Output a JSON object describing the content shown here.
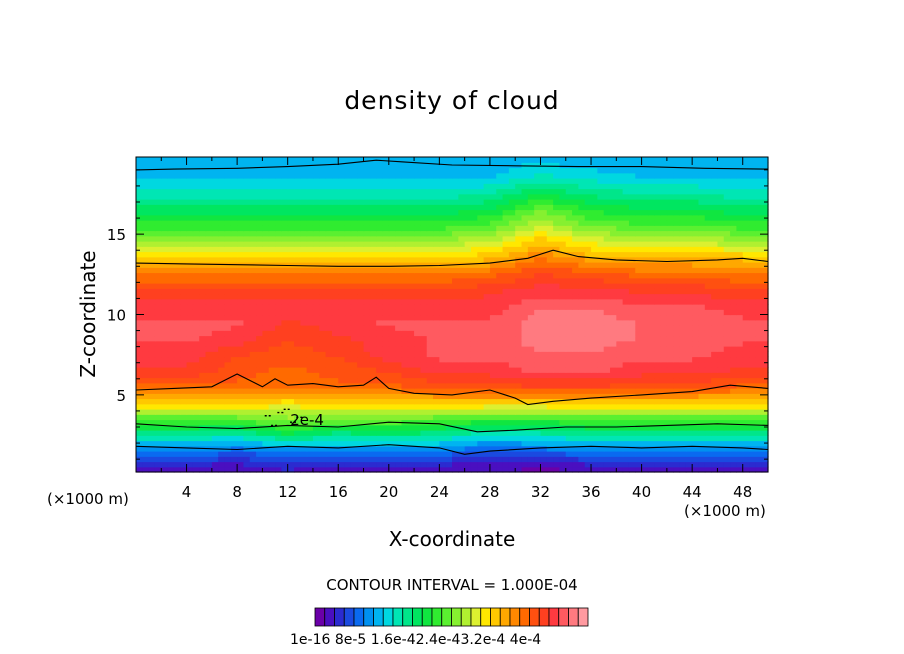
{
  "chart_data": {
    "type": "heatmap",
    "title": "density of cloud",
    "xlabel": "X-coordinate",
    "ylabel": "Z-coordinate",
    "x_unit": "(×1000 m)",
    "xlim": [
      0,
      50
    ],
    "ylim": [
      0.2,
      19.8
    ],
    "x_ticks": [
      4,
      8,
      12,
      16,
      20,
      24,
      28,
      32,
      36,
      40,
      44,
      48
    ],
    "y_ticks": [
      5,
      10,
      15
    ],
    "contour_interval_text": "CONTOUR INTERVAL = 1.000E-04",
    "contour_label": "2e-4",
    "colorbar_labels": "1e-16 8e-5 1.6e-42.4e-43.2e-4 4e-4",
    "colorbar_colors": [
      "#6a00a8",
      "#4a0fc0",
      "#2b2bd0",
      "#1a4ae0",
      "#0a6af0",
      "#0090f0",
      "#00b4f0",
      "#00d8e0",
      "#00e6b4",
      "#00e68a",
      "#00e660",
      "#10e640",
      "#30ec30",
      "#5af030",
      "#86f030",
      "#b0f030",
      "#dcf030",
      "#ffe800",
      "#ffc800",
      "#ffa800",
      "#ff8800",
      "#ff6a00",
      "#ff5010",
      "#ff4020",
      "#ff3a40",
      "#ff5a60",
      "#ff7a80",
      "#ff9aa0"
    ],
    "contour_lines": [
      {
        "level": "upper",
        "points": [
          [
            0,
            19.0
          ],
          [
            3,
            19.05
          ],
          [
            8,
            19.1
          ],
          [
            12,
            19.2
          ],
          [
            16,
            19.35
          ],
          [
            19,
            19.6
          ],
          [
            21,
            19.5
          ],
          [
            25,
            19.3
          ],
          [
            30,
            19.25
          ],
          [
            35,
            19.2
          ],
          [
            40,
            19.2
          ],
          [
            45,
            19.1
          ],
          [
            50,
            19.05
          ]
        ]
      },
      {
        "level": "mid-upper",
        "points": [
          [
            0,
            13.2
          ],
          [
            4,
            13.15
          ],
          [
            8,
            13.1
          ],
          [
            12,
            13.05
          ],
          [
            16,
            13.0
          ],
          [
            20,
            13.0
          ],
          [
            24,
            13.05
          ],
          [
            28,
            13.2
          ],
          [
            31,
            13.5
          ],
          [
            33,
            14.0
          ],
          [
            35,
            13.6
          ],
          [
            38,
            13.4
          ],
          [
            42,
            13.3
          ],
          [
            46,
            13.4
          ],
          [
            48,
            13.5
          ],
          [
            50,
            13.3
          ]
        ]
      },
      {
        "level": "mid-lower",
        "points": [
          [
            0,
            5.3
          ],
          [
            3,
            5.4
          ],
          [
            6,
            5.5
          ],
          [
            8,
            6.3
          ],
          [
            9,
            5.9
          ],
          [
            10,
            5.5
          ],
          [
            11,
            6.0
          ],
          [
            12,
            5.6
          ],
          [
            14,
            5.7
          ],
          [
            16,
            5.5
          ],
          [
            18,
            5.6
          ],
          [
            19,
            6.1
          ],
          [
            20,
            5.4
          ],
          [
            22,
            5.1
          ],
          [
            25,
            5.0
          ],
          [
            28,
            5.3
          ],
          [
            30,
            4.8
          ],
          [
            31,
            4.4
          ],
          [
            33,
            4.6
          ],
          [
            36,
            4.8
          ],
          [
            40,
            5.0
          ],
          [
            44,
            5.2
          ],
          [
            47,
            5.6
          ],
          [
            50,
            5.4
          ]
        ]
      },
      {
        "level": "low",
        "points": [
          [
            0,
            3.2
          ],
          [
            4,
            3.0
          ],
          [
            8,
            2.9
          ],
          [
            12,
            3.1
          ],
          [
            16,
            3.0
          ],
          [
            20,
            3.3
          ],
          [
            24,
            3.2
          ],
          [
            27,
            2.7
          ],
          [
            30,
            2.8
          ],
          [
            34,
            3.0
          ],
          [
            38,
            3.0
          ],
          [
            42,
            3.1
          ],
          [
            46,
            3.2
          ],
          [
            50,
            3.1
          ]
        ]
      },
      {
        "level": "lowest",
        "points": [
          [
            0,
            1.8
          ],
          [
            4,
            1.7
          ],
          [
            8,
            1.6
          ],
          [
            12,
            1.8
          ],
          [
            16,
            1.7
          ],
          [
            20,
            1.9
          ],
          [
            24,
            1.7
          ],
          [
            26,
            1.3
          ],
          [
            28,
            1.5
          ],
          [
            32,
            1.7
          ],
          [
            36,
            1.8
          ],
          [
            40,
            1.7
          ],
          [
            44,
            1.8
          ],
          [
            48,
            1.7
          ],
          [
            50,
            1.6
          ]
        ]
      }
    ],
    "field": {
      "x": [
        0,
        4,
        8,
        12,
        16,
        20,
        24,
        28,
        32,
        36,
        40,
        44,
        48,
        50
      ],
      "z": [
        0.5,
        1.5,
        2.5,
        3.5,
        4.5,
        5.5,
        6.5,
        7.5,
        8.5,
        9.5,
        10.5,
        11.5,
        12.5,
        13.5,
        14.5,
        15.5,
        16.5,
        17.5,
        18.5,
        19.5
      ],
      "values_x1e-4": [
        [
          0.2,
          0.2,
          0.2,
          0.3,
          0.2,
          0.2,
          0.2,
          0.2,
          0.1,
          0.2,
          0.2,
          0.2,
          0.2,
          0.2
        ],
        [
          0.7,
          0.7,
          0.6,
          0.7,
          0.7,
          0.7,
          0.7,
          0.5,
          0.6,
          0.7,
          0.7,
          0.7,
          0.7,
          0.7
        ],
        [
          1.3,
          1.3,
          1.2,
          1.5,
          1.3,
          1.4,
          1.3,
          1.1,
          1.2,
          1.3,
          1.3,
          1.3,
          1.3,
          1.3
        ],
        [
          1.9,
          1.9,
          1.9,
          2.1,
          2.0,
          2.0,
          1.9,
          1.8,
          1.8,
          1.9,
          1.9,
          1.9,
          1.9,
          1.9
        ],
        [
          2.6,
          2.6,
          2.6,
          2.5,
          2.6,
          2.6,
          2.6,
          2.6,
          2.6,
          2.6,
          2.6,
          2.6,
          2.6,
          2.6
        ],
        [
          3.1,
          3.1,
          3.1,
          3.0,
          3.1,
          3.1,
          3.2,
          3.2,
          3.3,
          3.3,
          3.2,
          3.2,
          3.1,
          3.1
        ],
        [
          3.4,
          3.4,
          3.2,
          3.1,
          3.2,
          3.3,
          3.5,
          3.5,
          3.6,
          3.6,
          3.5,
          3.5,
          3.4,
          3.4
        ],
        [
          3.5,
          3.5,
          3.3,
          3.2,
          3.3,
          3.5,
          3.6,
          3.6,
          3.7,
          3.7,
          3.6,
          3.6,
          3.5,
          3.5
        ],
        [
          3.6,
          3.6,
          3.5,
          3.3,
          3.4,
          3.5,
          3.6,
          3.6,
          3.8,
          3.8,
          3.7,
          3.7,
          3.6,
          3.6
        ],
        [
          3.6,
          3.6,
          3.6,
          3.4,
          3.5,
          3.6,
          3.6,
          3.6,
          3.8,
          3.8,
          3.7,
          3.7,
          3.6,
          3.6
        ],
        [
          3.5,
          3.5,
          3.5,
          3.5,
          3.5,
          3.5,
          3.5,
          3.5,
          3.7,
          3.7,
          3.6,
          3.6,
          3.5,
          3.5
        ],
        [
          3.3,
          3.3,
          3.3,
          3.3,
          3.3,
          3.3,
          3.3,
          3.4,
          3.5,
          3.5,
          3.4,
          3.4,
          3.3,
          3.3
        ],
        [
          3.0,
          3.0,
          3.0,
          3.0,
          3.0,
          3.0,
          3.0,
          3.1,
          3.3,
          3.2,
          3.1,
          3.1,
          3.0,
          3.0
        ],
        [
          2.6,
          2.6,
          2.6,
          2.6,
          2.6,
          2.6,
          2.6,
          2.7,
          3.0,
          2.8,
          2.7,
          2.7,
          2.7,
          2.6
        ],
        [
          2.2,
          2.2,
          2.2,
          2.2,
          2.2,
          2.2,
          2.2,
          2.3,
          2.7,
          2.4,
          2.3,
          2.3,
          2.2,
          2.2
        ],
        [
          1.8,
          1.8,
          1.8,
          1.8,
          1.8,
          1.8,
          1.8,
          1.9,
          2.3,
          2.0,
          1.9,
          1.9,
          1.8,
          1.8
        ],
        [
          1.5,
          1.5,
          1.5,
          1.5,
          1.5,
          1.5,
          1.5,
          1.6,
          2.0,
          1.7,
          1.6,
          1.6,
          1.5,
          1.5
        ],
        [
          1.2,
          1.2,
          1.2,
          1.2,
          1.2,
          1.2,
          1.2,
          1.3,
          1.6,
          1.4,
          1.3,
          1.3,
          1.2,
          1.2
        ],
        [
          1.0,
          1.0,
          1.0,
          1.0,
          1.0,
          1.0,
          1.0,
          1.0,
          1.2,
          1.1,
          1.0,
          1.0,
          1.0,
          1.0
        ],
        [
          0.9,
          0.9,
          0.9,
          0.9,
          0.9,
          0.9,
          0.9,
          0.9,
          1.0,
          0.9,
          0.9,
          0.9,
          0.9,
          0.9
        ]
      ]
    }
  }
}
